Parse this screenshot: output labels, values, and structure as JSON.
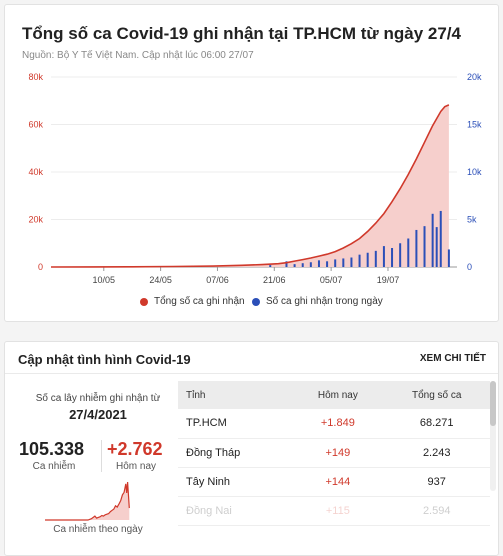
{
  "chart_data": {
    "type": "line",
    "title": "Tổng số ca Covid-19 ghi nhận tại TP.HCM từ ngày 27/4",
    "subtitle": "Nguồn: Bộ Y Tế Việt Nam. Cập nhật lúc 06:00 27/07",
    "x_ticks": [
      "10/05",
      "24/05",
      "07/06",
      "21/06",
      "05/07",
      "19/07"
    ],
    "x_tick_index": [
      13,
      27,
      41,
      55,
      69,
      83
    ],
    "y_left": {
      "ticks": [
        "0",
        "20k",
        "40k",
        "60k",
        "80k"
      ],
      "range": [
        0,
        80000
      ]
    },
    "y_right": {
      "ticks": [
        "0",
        "5k",
        "10k",
        "15k",
        "20k"
      ],
      "range": [
        0,
        20000
      ]
    },
    "grid": true,
    "legend_position": "bottom",
    "series": [
      {
        "name": "Tổng số ca ghi nhận",
        "type": "area",
        "axis": "left",
        "color": "#d0392b",
        "fill": "#f6cfcc",
        "points": [
          [
            0,
            0
          ],
          [
            10,
            40
          ],
          [
            20,
            100
          ],
          [
            30,
            200
          ],
          [
            40,
            400
          ],
          [
            47,
            700
          ],
          [
            52,
            1000
          ],
          [
            56,
            1400
          ],
          [
            58,
            1800
          ],
          [
            60,
            2500
          ],
          [
            62,
            3100
          ],
          [
            64,
            3800
          ],
          [
            66,
            4600
          ],
          [
            68,
            5400
          ],
          [
            70,
            6500
          ],
          [
            72,
            8000
          ],
          [
            74,
            9800
          ],
          [
            76,
            12000
          ],
          [
            78,
            15000
          ],
          [
            80,
            18500
          ],
          [
            82,
            22500
          ],
          [
            84,
            27500
          ],
          [
            86,
            33000
          ],
          [
            88,
            39000
          ],
          [
            90,
            45500
          ],
          [
            92,
            52500
          ],
          [
            94,
            59500
          ],
          [
            96,
            65500
          ],
          [
            97,
            67500
          ],
          [
            98,
            68271
          ]
        ]
      },
      {
        "name": "Số ca ghi nhận trong ngày",
        "type": "bar",
        "axis": "right",
        "color": "#2b4fb8",
        "bars": [
          [
            54,
            200
          ],
          [
            58,
            600
          ],
          [
            60,
            300
          ],
          [
            62,
            400
          ],
          [
            64,
            500
          ],
          [
            66,
            700
          ],
          [
            68,
            600
          ],
          [
            70,
            800
          ],
          [
            72,
            900
          ],
          [
            74,
            1000
          ],
          [
            76,
            1300
          ],
          [
            78,
            1500
          ],
          [
            80,
            1700
          ],
          [
            82,
            2200
          ],
          [
            84,
            2000
          ],
          [
            86,
            2500
          ],
          [
            88,
            3000
          ],
          [
            90,
            3900
          ],
          [
            92,
            4300
          ],
          [
            94,
            5600
          ],
          [
            95,
            4200
          ],
          [
            96,
            5900
          ],
          [
            98,
            1849
          ]
        ]
      }
    ]
  },
  "update": {
    "title": "Cập nhật tình hình Covid-19",
    "more_label": "XEM CHI TIẾT",
    "since_label": "Số ca lây nhiễm ghi nhận từ",
    "since_date": "27/4/2021",
    "total_cases": "105.338",
    "total_label": "Ca nhiễm",
    "today_cases": "+2.762",
    "today_label": "Hôm nay",
    "spark_label": "Ca nhiễm theo ngày",
    "spark_color": "#d0392b",
    "table": {
      "headers": [
        "Tỉnh",
        "Hôm nay",
        "Tổng số ca"
      ],
      "rows": [
        [
          "TP.HCM",
          "+1.849",
          "68.271"
        ],
        [
          "Đồng Tháp",
          "+149",
          "2.243"
        ],
        [
          "Tây Ninh",
          "+144",
          "937"
        ],
        [
          "Đồng Nai",
          "+115",
          "2.594"
        ]
      ]
    }
  }
}
